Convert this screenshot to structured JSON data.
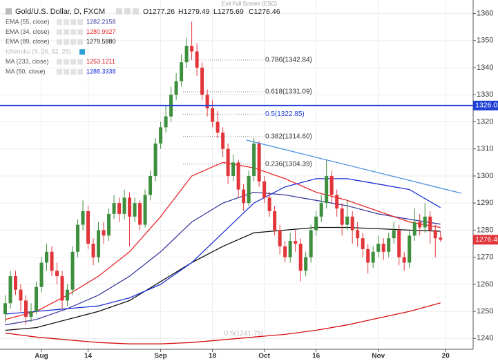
{
  "chart_data": {
    "type": "candlestick",
    "title": "Gold/U.S. Dollar, D, FXCM",
    "top_notice": "Exit Full Screen (ESC)",
    "ohlc_header": [
      "O1277.26",
      "H1279.49",
      "L1275.69",
      "C1276.46"
    ],
    "hidden_indicator": "Ichimoku (9, 26, 52, 26)",
    "up_color": "#3d8f3d",
    "down_color": "#e2353a",
    "grid": true,
    "ylim": [
      1236,
      1365
    ],
    "yticks": [
      1240,
      1250,
      1260,
      1270,
      1280,
      1290,
      1300,
      1310,
      1320,
      1330,
      1340,
      1350,
      1360
    ],
    "xlim": [
      -1,
      90.3
    ],
    "xticks": [
      {
        "value": 7,
        "label": "Aug"
      },
      {
        "value": 16,
        "label": "14"
      },
      {
        "value": 30,
        "label": "Sep"
      },
      {
        "value": 40,
        "label": "18"
      },
      {
        "value": 50,
        "label": "Oct"
      },
      {
        "value": 60,
        "label": "16"
      },
      {
        "value": 72,
        "label": "Nov"
      },
      {
        "value": 85,
        "label": "20"
      }
    ],
    "candles": [
      [
        1249,
        1256,
        1246,
        1253
      ],
      [
        1253,
        1265,
        1251,
        1263
      ],
      [
        1263,
        1265,
        1256,
        1258
      ],
      [
        1258,
        1260,
        1250,
        1254
      ],
      [
        1254,
        1256,
        1245,
        1248
      ],
      [
        1248,
        1253,
        1246,
        1250
      ],
      [
        1250,
        1261,
        1249,
        1259
      ],
      [
        1259,
        1270,
        1257,
        1268
      ],
      [
        1268,
        1275,
        1265,
        1272
      ],
      [
        1272,
        1274,
        1263,
        1265
      ],
      [
        1265,
        1268,
        1260,
        1263
      ],
      [
        1263,
        1265,
        1251,
        1254
      ],
      [
        1254,
        1260,
        1252,
        1258
      ],
      [
        1258,
        1274,
        1256,
        1272
      ],
      [
        1272,
        1284,
        1270,
        1282
      ],
      [
        1282,
        1291,
        1280,
        1287
      ],
      [
        1287,
        1289,
        1273,
        1275
      ],
      [
        1275,
        1277,
        1267,
        1270
      ],
      [
        1270,
        1283,
        1268,
        1280
      ],
      [
        1280,
        1283,
        1275,
        1278
      ],
      [
        1278,
        1288,
        1276,
        1286
      ],
      [
        1286,
        1293,
        1284,
        1290
      ],
      [
        1290,
        1292,
        1283,
        1286
      ],
      [
        1286,
        1295,
        1284,
        1292
      ],
      [
        1292,
        1294,
        1274,
        1285
      ],
      [
        1285,
        1292,
        1283,
        1290
      ],
      [
        1290,
        1291,
        1280,
        1282
      ],
      [
        1282,
        1295,
        1281,
        1293
      ],
      [
        1293,
        1302,
        1291,
        1300
      ],
      [
        1300,
        1314,
        1298,
        1312
      ],
      [
        1312,
        1320,
        1310,
        1318
      ],
      [
        1318,
        1326,
        1316,
        1322
      ],
      [
        1322,
        1333,
        1320,
        1330
      ],
      [
        1330,
        1338,
        1328,
        1335
      ],
      [
        1335,
        1345,
        1333,
        1342
      ],
      [
        1342,
        1351,
        1340,
        1348
      ],
      [
        1348,
        1357,
        1343,
        1346
      ],
      [
        1346,
        1349,
        1337,
        1340
      ],
      [
        1340,
        1342,
        1328,
        1330
      ],
      [
        1330,
        1332,
        1322,
        1325
      ],
      [
        1325,
        1328,
        1318,
        1320
      ],
      [
        1320,
        1324,
        1314,
        1316
      ],
      [
        1316,
        1318,
        1307,
        1310
      ],
      [
        1310,
        1312,
        1297,
        1300
      ],
      [
        1300,
        1308,
        1298,
        1305
      ],
      [
        1305,
        1306,
        1292,
        1295
      ],
      [
        1295,
        1297,
        1287,
        1290
      ],
      [
        1290,
        1302,
        1289,
        1300
      ],
      [
        1300,
        1314,
        1298,
        1312
      ],
      [
        1312,
        1313,
        1296,
        1298
      ],
      [
        1298,
        1300,
        1290,
        1292
      ],
      [
        1292,
        1294,
        1285,
        1287
      ],
      [
        1287,
        1289,
        1278,
        1280
      ],
      [
        1280,
        1282,
        1271,
        1274
      ],
      [
        1274,
        1276,
        1268,
        1270
      ],
      [
        1270,
        1279,
        1268,
        1276
      ],
      [
        1276,
        1280,
        1272,
        1275
      ],
      [
        1275,
        1277,
        1261,
        1265
      ],
      [
        1265,
        1272,
        1263,
        1270
      ],
      [
        1270,
        1282,
        1268,
        1280
      ],
      [
        1280,
        1287,
        1278,
        1285
      ],
      [
        1285,
        1293,
        1283,
        1290
      ],
      [
        1290,
        1306,
        1288,
        1300
      ],
      [
        1300,
        1302,
        1290,
        1293
      ],
      [
        1293,
        1295,
        1285,
        1288
      ],
      [
        1288,
        1290,
        1278,
        1282
      ],
      [
        1282,
        1291,
        1280,
        1285
      ],
      [
        1285,
        1287,
        1275,
        1280
      ],
      [
        1280,
        1283,
        1274,
        1277
      ],
      [
        1277,
        1279,
        1270,
        1273
      ],
      [
        1273,
        1275,
        1264,
        1268
      ],
      [
        1268,
        1274,
        1266,
        1272
      ],
      [
        1272,
        1278,
        1270,
        1275
      ],
      [
        1275,
        1277,
        1269,
        1272
      ],
      [
        1272,
        1279,
        1270,
        1277
      ],
      [
        1277,
        1283,
        1275,
        1280
      ],
      [
        1280,
        1282,
        1267,
        1270
      ],
      [
        1270,
        1272,
        1265,
        1268
      ],
      [
        1268,
        1280,
        1266,
        1278
      ],
      [
        1278,
        1288,
        1276,
        1283
      ],
      [
        1283,
        1286,
        1278,
        1281
      ],
      [
        1281,
        1290,
        1279,
        1285
      ],
      [
        1285,
        1287,
        1275,
        1280
      ],
      [
        1280,
        1282,
        1270,
        1277
      ],
      [
        1277.26,
        1279.49,
        1275.69,
        1276.46
      ]
    ],
    "series": [
      {
        "name": "EMA (55, close)",
        "legend_value": "1282.2158",
        "color": "#3b3b9e",
        "x": [
          0,
          6,
          12,
          18,
          24,
          30,
          36,
          42,
          48,
          54,
          60,
          66,
          72,
          78,
          84
        ],
        "values": [
          1245,
          1247,
          1251,
          1256,
          1263,
          1272,
          1283,
          1290,
          1294,
          1293,
          1291,
          1289,
          1286,
          1284,
          1282.22
        ]
      },
      {
        "name": "EMA (34, close)",
        "legend_value": "1280.9927",
        "color": "#e8262b",
        "x": [
          0,
          6,
          12,
          18,
          24,
          30,
          36,
          42,
          48,
          54,
          60,
          66,
          72,
          78,
          84
        ],
        "values": [
          1247,
          1250,
          1256,
          1263,
          1272,
          1285,
          1300,
          1305,
          1303,
          1299,
          1294,
          1291,
          1287,
          1283,
          1280.99
        ]
      },
      {
        "name": "EMA (89, close)",
        "legend_value": "1279.5880",
        "color": "#111111",
        "x": [
          0,
          6,
          12,
          18,
          24,
          30,
          36,
          42,
          48,
          54,
          60,
          66,
          72,
          78,
          84
        ],
        "values": [
          1243,
          1244,
          1247,
          1250,
          1254,
          1261,
          1268,
          1274,
          1279,
          1280,
          1281,
          1281,
          1280.5,
          1280,
          1279.59
        ]
      },
      {
        "name": "MA (233, close)",
        "legend_value": "1253.1211",
        "color": "#d40f0f",
        "x": [
          0,
          6,
          12,
          18,
          24,
          30,
          36,
          42,
          48,
          54,
          60,
          66,
          72,
          78,
          84
        ],
        "values": [
          1242,
          1240.5,
          1239.5,
          1238.5,
          1238,
          1238,
          1238.5,
          1239.5,
          1240.5,
          1241.5,
          1243,
          1245,
          1247.5,
          1250,
          1253.12
        ]
      },
      {
        "name": "MA (50, close)",
        "legend_value": "1288.3338",
        "color": "#1a2fd6",
        "x": [
          0,
          6,
          12,
          18,
          24,
          30,
          36,
          42,
          48,
          54,
          60,
          66,
          72,
          78,
          84
        ],
        "values": [
          1249,
          1250,
          1251,
          1252,
          1255,
          1260,
          1268,
          1279,
          1290,
          1296,
          1299,
          1299,
          1297,
          1295,
          1288.33
        ]
      }
    ],
    "fib_levels": [
      {
        "value": 1342.84,
        "label": "0.786(1342.84)"
      },
      {
        "value": 1331.09,
        "label": "0.618(1331.09)"
      },
      {
        "value": 1322.85,
        "label": "0.5(1322.85)"
      },
      {
        "value": 1314.6,
        "label": "0.382(1314.60)"
      },
      {
        "value": 1304.39,
        "label": "0.236(1304.39)"
      },
      {
        "value": 1241.75,
        "label": "0.5(1241.75)"
      }
    ],
    "hline": {
      "value": 1326.02,
      "color": "#1f3fd6"
    }
  }
}
